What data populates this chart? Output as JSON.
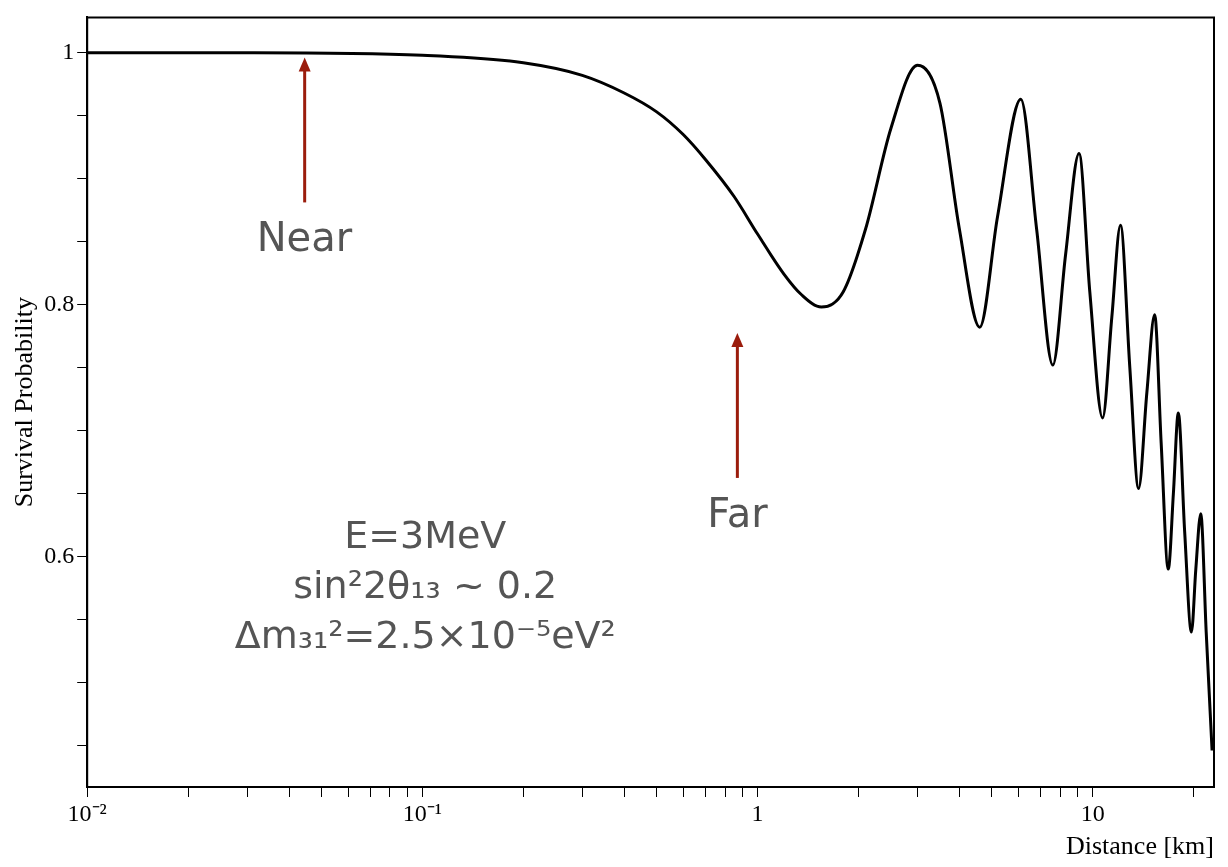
{
  "chart_data": {
    "type": "line",
    "xlabel": "Distance [km]",
    "ylabel": "Survival Probability",
    "log": "x",
    "grid": false,
    "legend": false,
    "marker": "none",
    "line_style": "solid",
    "xlim": [
      0.01,
      23
    ],
    "ylim": [
      0.417,
      1.028
    ],
    "xticks": [
      {
        "value": 0.01,
        "label": "10⁻²"
      },
      {
        "value": 0.02,
        "label": null
      },
      {
        "value": 0.03,
        "label": null
      },
      {
        "value": 0.04,
        "label": null
      },
      {
        "value": 0.05,
        "label": null
      },
      {
        "value": 0.06,
        "label": null
      },
      {
        "value": 0.07,
        "label": null
      },
      {
        "value": 0.08,
        "label": null
      },
      {
        "value": 0.09,
        "label": null
      },
      {
        "value": 0.1,
        "label": "10⁻¹"
      },
      {
        "value": 0.2,
        "label": null
      },
      {
        "value": 0.3,
        "label": null
      },
      {
        "value": 0.4,
        "label": null
      },
      {
        "value": 0.5,
        "label": null
      },
      {
        "value": 0.6,
        "label": null
      },
      {
        "value": 0.7,
        "label": null
      },
      {
        "value": 0.8,
        "label": null
      },
      {
        "value": 0.9,
        "label": null
      },
      1,
      {
        "value": 2,
        "label": null
      },
      {
        "value": 3,
        "label": null
      },
      {
        "value": 4,
        "label": null
      },
      {
        "value": 5,
        "label": null
      },
      {
        "value": 6,
        "label": null
      },
      {
        "value": 7,
        "label": null
      },
      {
        "value": 8,
        "label": null
      },
      {
        "value": 9,
        "label": null
      },
      10,
      {
        "value": 20,
        "label": null
      }
    ],
    "yticks": [
      {
        "value": 0.45,
        "label": null
      },
      {
        "value": 0.5,
        "label": null
      },
      {
        "value": 0.55,
        "label": null
      },
      0.6,
      {
        "value": 0.65,
        "label": null
      },
      {
        "value": 0.7,
        "label": null
      },
      {
        "value": 0.75,
        "label": null
      },
      0.8,
      {
        "value": 0.85,
        "label": null
      },
      {
        "value": 0.9,
        "label": null
      },
      {
        "value": 0.95,
        "label": null
      },
      1
    ],
    "x": [
      0.01,
      0.03,
      0.1,
      0.2,
      0.3,
      0.4,
      0.5,
      0.6,
      0.7,
      0.85,
      1.0,
      1.2,
      1.35,
      1.55,
      1.8,
      2.1,
      2.5,
      3.0,
      3.5,
      4.0,
      4.6,
      5.2,
      6.1,
      6.8,
      7.6,
      8.3,
      9.1,
      9.8,
      10.7,
      11.4,
      12.1,
      12.9,
      13.7,
      14.5,
      15.3,
      16.0,
      16.8,
      17.4,
      18.0,
      18.8,
      19.7,
      20.3,
      21.0,
      21.8,
      22.7
    ],
    "series": [
      {
        "color": "#000000",
        "values": [
          1.0,
          1.0,
          0.998,
          0.992,
          0.982,
          0.968,
          0.953,
          0.935,
          0.915,
          0.886,
          0.856,
          0.824,
          0.808,
          0.798,
          0.81,
          0.86,
          0.94,
          0.99,
          0.96,
          0.86,
          0.782,
          0.87,
          0.963,
          0.86,
          0.752,
          0.84,
          0.92,
          0.81,
          0.71,
          0.79,
          0.863,
          0.75,
          0.654,
          0.73,
          0.792,
          0.69,
          0.59,
          0.65,
          0.714,
          0.62,
          0.54,
          0.59,
          0.634,
          0.54,
          0.446
        ]
      }
    ],
    "annotations": [
      "Near",
      "Far",
      "E=3MeV",
      "sin²2θ₁₃ ~ 0.2",
      "Δm₃₁²=2.5×10⁻⁵eV²"
    ]
  }
}
